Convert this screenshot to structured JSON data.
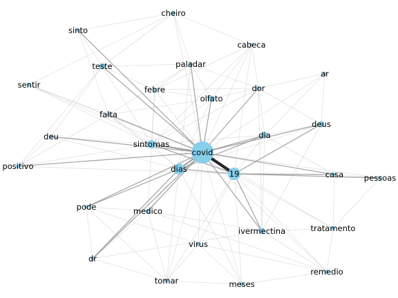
{
  "colors": {
    "node": "#87ceeb",
    "edge_dark": "#1a1a1a",
    "edge_mid": "#8c8c8c",
    "edge_light": "#c8c8c8",
    "edge_faint": "#e6e6e6",
    "label": "#000000"
  },
  "chart_data": {
    "type": "network",
    "nodes": [
      {
        "id": "covid",
        "label": "covid",
        "weight": 10
      },
      {
        "id": "19",
        "label": "19",
        "weight": 5
      },
      {
        "id": "dias",
        "label": "dias",
        "weight": 4
      },
      {
        "id": "sintomas",
        "label": "sintomas",
        "weight": 3
      },
      {
        "id": "dia",
        "label": "dia",
        "weight": 2
      },
      {
        "id": "deus",
        "label": "deus",
        "weight": 2
      },
      {
        "id": "olfato",
        "label": "olfato",
        "weight": 2
      },
      {
        "id": "ivermectina",
        "label": "ivermectina",
        "weight": 2
      },
      {
        "id": "teste",
        "label": "teste",
        "weight": 2
      },
      {
        "id": "paladar",
        "label": "paladar",
        "weight": 1
      },
      {
        "id": "dor",
        "label": "dor",
        "weight": 1
      },
      {
        "id": "cabeca",
        "label": "cabeca",
        "weight": 1
      },
      {
        "id": "febre",
        "label": "febre",
        "weight": 1
      },
      {
        "id": "falta",
        "label": "falta",
        "weight": 1
      },
      {
        "id": "medico",
        "label": "medico",
        "weight": 1
      },
      {
        "id": "pode",
        "label": "pode",
        "weight": 1
      },
      {
        "id": "dr",
        "label": "dr",
        "weight": 1
      },
      {
        "id": "virus",
        "label": "virus",
        "weight": 1
      },
      {
        "id": "tratamento",
        "label": "tratamento",
        "weight": 1
      },
      {
        "id": "casa",
        "label": "casa",
        "weight": 1
      },
      {
        "id": "pessoas",
        "label": "pessoas",
        "weight": 1
      },
      {
        "id": "ar",
        "label": "ar",
        "weight": 1
      },
      {
        "id": "cheiro",
        "label": "cheiro",
        "weight": 1
      },
      {
        "id": "sinto",
        "label": "sinto",
        "weight": 1
      },
      {
        "id": "sentir",
        "label": "sentir",
        "weight": 1
      },
      {
        "id": "deu",
        "label": "deu",
        "weight": 1
      },
      {
        "id": "positivo",
        "label": "positivo",
        "weight": 1
      },
      {
        "id": "tomar",
        "label": "tomar",
        "weight": 1
      },
      {
        "id": "meses",
        "label": "meses",
        "weight": 1
      },
      {
        "id": "remedio",
        "label": "remedio",
        "weight": 1
      }
    ],
    "edges": [
      {
        "source": "covid",
        "target": "19",
        "strength": 5
      },
      {
        "source": "covid",
        "target": "dias",
        "strength": 3
      },
      {
        "source": "covid",
        "target": "sintomas",
        "strength": 3
      },
      {
        "source": "covid",
        "target": "dia",
        "strength": 2
      },
      {
        "source": "covid",
        "target": "deus",
        "strength": 2
      },
      {
        "source": "covid",
        "target": "olfato",
        "strength": 2
      },
      {
        "source": "covid",
        "target": "paladar",
        "strength": 2
      },
      {
        "source": "covid",
        "target": "dor",
        "strength": 2
      },
      {
        "source": "covid",
        "target": "teste",
        "strength": 2
      },
      {
        "source": "covid",
        "target": "ivermectina",
        "strength": 2
      },
      {
        "source": "covid",
        "target": "dr",
        "strength": 2
      },
      {
        "source": "covid",
        "target": "pode",
        "strength": 2
      },
      {
        "source": "covid",
        "target": "medico",
        "strength": 2
      },
      {
        "source": "covid",
        "target": "casa",
        "strength": 2
      },
      {
        "source": "covid",
        "target": "falta",
        "strength": 2
      },
      {
        "source": "covid",
        "target": "deu",
        "strength": 2
      },
      {
        "source": "covid",
        "target": "positivo",
        "strength": 2
      },
      {
        "source": "covid",
        "target": "sinto",
        "strength": 2
      },
      {
        "source": "covid",
        "target": "febre",
        "strength": 1
      },
      {
        "source": "covid",
        "target": "cabeca",
        "strength": 1
      },
      {
        "source": "covid",
        "target": "cheiro",
        "strength": 1
      },
      {
        "source": "covid",
        "target": "sentir",
        "strength": 1
      },
      {
        "source": "covid",
        "target": "tomar",
        "strength": 1
      },
      {
        "source": "covid",
        "target": "virus",
        "strength": 1
      },
      {
        "source": "covid",
        "target": "meses",
        "strength": 1
      },
      {
        "source": "covid",
        "target": "tratamento",
        "strength": 1
      },
      {
        "source": "covid",
        "target": "pessoas",
        "strength": 1
      },
      {
        "source": "covid",
        "target": "ar",
        "strength": 1
      },
      {
        "source": "covid",
        "target": "remedio",
        "strength": 1
      },
      {
        "source": "19",
        "target": "ivermectina",
        "strength": 2
      },
      {
        "source": "19",
        "target": "sintomas",
        "strength": 2
      },
      {
        "source": "19",
        "target": "dias",
        "strength": 2
      },
      {
        "source": "19",
        "target": "casa",
        "strength": 2
      },
      {
        "source": "19",
        "target": "pessoas",
        "strength": 2
      },
      {
        "source": "19",
        "target": "deus",
        "strength": 2
      },
      {
        "source": "19",
        "target": "dia",
        "strength": 1
      },
      {
        "source": "19",
        "target": "tratamento",
        "strength": 1
      },
      {
        "source": "19",
        "target": "remedio",
        "strength": 1
      },
      {
        "source": "19",
        "target": "meses",
        "strength": 1
      },
      {
        "source": "19",
        "target": "positivo",
        "strength": 1
      },
      {
        "source": "19",
        "target": "sentir",
        "strength": 1
      },
      {
        "source": "19",
        "target": "cabeca",
        "strength": 1
      },
      {
        "source": "19",
        "target": "virus",
        "strength": 1
      },
      {
        "source": "19",
        "target": "tomar",
        "strength": 1
      },
      {
        "source": "dias",
        "target": "dr",
        "strength": 2
      },
      {
        "source": "dias",
        "target": "pode",
        "strength": 2
      },
      {
        "source": "dias",
        "target": "dia",
        "strength": 2
      },
      {
        "source": "dias",
        "target": "sintomas",
        "strength": 1
      },
      {
        "source": "dias",
        "target": "olfato",
        "strength": 1
      },
      {
        "source": "dias",
        "target": "paladar",
        "strength": 1
      },
      {
        "source": "dias",
        "target": "falta",
        "strength": 1
      },
      {
        "source": "dias",
        "target": "deu",
        "strength": 1
      },
      {
        "source": "dias",
        "target": "tomar",
        "strength": 1
      },
      {
        "source": "dias",
        "target": "meses",
        "strength": 1
      },
      {
        "source": "dias",
        "target": "deus",
        "strength": 1
      },
      {
        "source": "dias",
        "target": "medico",
        "strength": 1
      },
      {
        "source": "olfato",
        "target": "paladar",
        "strength": 1
      },
      {
        "source": "olfato",
        "target": "falta",
        "strength": 1
      },
      {
        "source": "olfato",
        "target": "sintomas",
        "strength": 1
      },
      {
        "source": "olfato",
        "target": "febre",
        "strength": 1
      },
      {
        "source": "olfato",
        "target": "dor",
        "strength": 1
      },
      {
        "source": "paladar",
        "target": "teste",
        "strength": 1
      },
      {
        "source": "paladar",
        "target": "falta",
        "strength": 1
      },
      {
        "source": "paladar",
        "target": "febre",
        "strength": 1
      },
      {
        "source": "paladar",
        "target": "dor",
        "strength": 1
      },
      {
        "source": "dor",
        "target": "cabeca",
        "strength": 1
      },
      {
        "source": "dor",
        "target": "febre",
        "strength": 1
      },
      {
        "source": "dor",
        "target": "ivermectina",
        "strength": 1
      },
      {
        "source": "dor",
        "target": "sintomas",
        "strength": 1
      },
      {
        "source": "cabeca",
        "target": "sintomas",
        "strength": 1
      },
      {
        "source": "cabeca",
        "target": "febre",
        "strength": 1
      },
      {
        "source": "cabeca",
        "target": "olfato",
        "strength": 1
      },
      {
        "source": "sintomas",
        "target": "febre",
        "strength": 1
      },
      {
        "source": "sintomas",
        "target": "falta",
        "strength": 1
      },
      {
        "source": "sintomas",
        "target": "teste",
        "strength": 1
      },
      {
        "source": "sintomas",
        "target": "deu",
        "strength": 1
      },
      {
        "source": "sintomas",
        "target": "positivo",
        "strength": 1
      },
      {
        "source": "sintomas",
        "target": "sentir",
        "strength": 1
      },
      {
        "source": "sintomas",
        "target": "dia",
        "strength": 1
      },
      {
        "source": "teste",
        "target": "sinto",
        "strength": 1
      },
      {
        "source": "teste",
        "target": "positivo",
        "strength": 1
      },
      {
        "source": "teste",
        "target": "deu",
        "strength": 1
      },
      {
        "source": "teste",
        "target": "febre",
        "strength": 1
      },
      {
        "source": "teste",
        "target": "cheiro",
        "strength": 1
      },
      {
        "source": "sinto",
        "target": "cheiro",
        "strength": 1
      },
      {
        "source": "sinto",
        "target": "falta",
        "strength": 1
      },
      {
        "source": "sentir",
        "target": "cheiro",
        "strength": 1
      },
      {
        "source": "sentir",
        "target": "falta",
        "strength": 1
      },
      {
        "source": "deu",
        "target": "positivo",
        "strength": 1
      },
      {
        "source": "cheiro",
        "target": "paladar",
        "strength": 1
      },
      {
        "source": "cheiro",
        "target": "cabeca",
        "strength": 1
      },
      {
        "source": "deus",
        "target": "ar",
        "strength": 1
      },
      {
        "source": "deus",
        "target": "dia",
        "strength": 1
      },
      {
        "source": "deus",
        "target": "dor",
        "strength": 1
      },
      {
        "source": "deus",
        "target": "ivermectina",
        "strength": 1
      },
      {
        "source": "ar",
        "target": "dor",
        "strength": 1
      },
      {
        "source": "ar",
        "target": "dia",
        "strength": 1
      },
      {
        "source": "dia",
        "target": "dor",
        "strength": 1
      },
      {
        "source": "dia",
        "target": "ivermectina",
        "strength": 1
      },
      {
        "source": "dia",
        "target": "casa",
        "strength": 1
      },
      {
        "source": "casa",
        "target": "pessoas",
        "strength": 1
      },
      {
        "source": "casa",
        "target": "tratamento",
        "strength": 1
      },
      {
        "source": "ivermectina",
        "target": "tratamento",
        "strength": 1
      },
      {
        "source": "ivermectina",
        "target": "remedio",
        "strength": 1
      },
      {
        "source": "ivermectina",
        "target": "medico",
        "strength": 1
      },
      {
        "source": "ivermectina",
        "target": "dr",
        "strength": 1
      },
      {
        "source": "tratamento",
        "target": "remedio",
        "strength": 1
      },
      {
        "source": "tratamento",
        "target": "pessoas",
        "strength": 1
      },
      {
        "source": "medico",
        "target": "pode",
        "strength": 1
      },
      {
        "source": "medico",
        "target": "dr",
        "strength": 1
      },
      {
        "source": "medico",
        "target": "tomar",
        "strength": 1
      },
      {
        "source": "medico",
        "target": "remedio",
        "strength": 1
      },
      {
        "source": "medico",
        "target": "febre",
        "strength": 1
      },
      {
        "source": "pode",
        "target": "dr",
        "strength": 1
      },
      {
        "source": "pode",
        "target": "virus",
        "strength": 1
      },
      {
        "source": "pode",
        "target": "tomar",
        "strength": 1
      },
      {
        "source": "virus",
        "target": "meses",
        "strength": 1
      },
      {
        "source": "virus",
        "target": "tomar",
        "strength": 1
      },
      {
        "source": "virus",
        "target": "remedio",
        "strength": 1
      },
      {
        "source": "meses",
        "target": "remedio",
        "strength": 1
      },
      {
        "source": "meses",
        "target": "tomar",
        "strength": 1
      },
      {
        "source": "dr",
        "target": "tomar",
        "strength": 1
      },
      {
        "source": "positivo",
        "target": "falta",
        "strength": 1
      }
    ]
  }
}
